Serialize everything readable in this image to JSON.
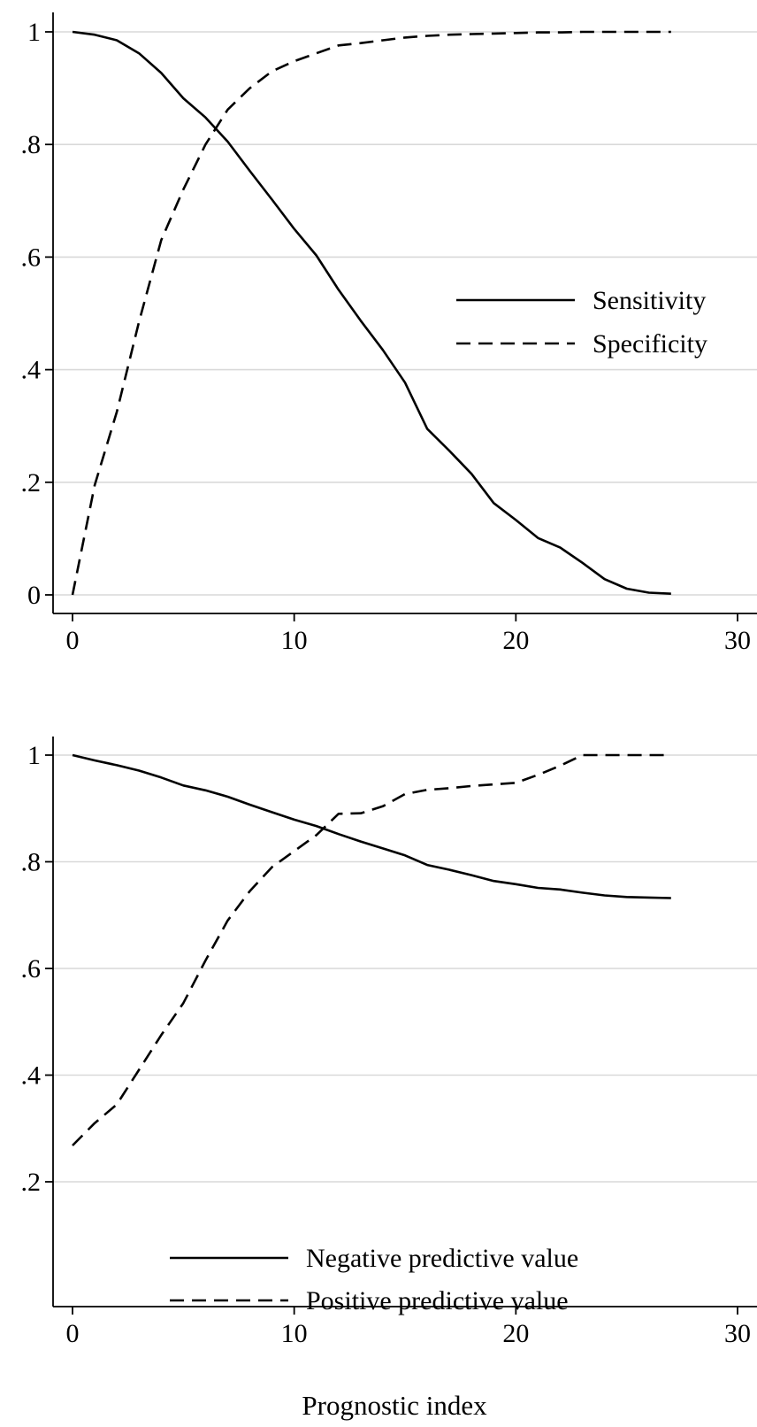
{
  "chart_data": [
    {
      "type": "line",
      "title": "",
      "xlabel": "",
      "ylabel": "",
      "xlim": [
        0,
        30
      ],
      "ylim": [
        0,
        1
      ],
      "x_ticks": [
        0,
        10,
        20,
        30
      ],
      "x_tick_labels": [
        "0",
        "10",
        "20",
        "30"
      ],
      "y_ticks": [
        0,
        0.2,
        0.4,
        0.6,
        0.8,
        1
      ],
      "y_tick_labels": [
        "0",
        ".2",
        ".4",
        ".6",
        ".8",
        "1"
      ],
      "grid": true,
      "legend_position": "right",
      "x": [
        0,
        1,
        2,
        3,
        4,
        5,
        6,
        7,
        8,
        9,
        10,
        11,
        12,
        13,
        14,
        15,
        16,
        17,
        18,
        19,
        20,
        21,
        22,
        23,
        24,
        25,
        26,
        27
      ],
      "series": [
        {
          "name": "Sensitivity",
          "style": "solid",
          "values": [
            1.0,
            0.995,
            0.985,
            0.962,
            0.927,
            0.882,
            0.848,
            0.805,
            0.753,
            0.702,
            0.65,
            0.603,
            0.542,
            0.487,
            0.435,
            0.377,
            0.295,
            0.256,
            0.215,
            0.163,
            0.133,
            0.101,
            0.084,
            0.057,
            0.028,
            0.011,
            0.004,
            0.002
          ]
        },
        {
          "name": "Specificity",
          "style": "dashed",
          "values": [
            0.0,
            0.195,
            0.325,
            0.485,
            0.63,
            0.72,
            0.8,
            0.862,
            0.9,
            0.93,
            0.948,
            0.962,
            0.976,
            0.98,
            0.985,
            0.99,
            0.993,
            0.995,
            0.996,
            0.997,
            0.998,
            0.999,
            0.999,
            1.0,
            1.0,
            1.0,
            1.0,
            1.0
          ]
        }
      ]
    },
    {
      "type": "line",
      "title": "",
      "xlabel": "Prognostic index",
      "ylabel": "",
      "xlim": [
        0,
        30
      ],
      "ylim": [
        0.0,
        1.03
      ],
      "x_ticks": [
        0,
        10,
        20,
        30
      ],
      "x_tick_labels": [
        "0",
        "10",
        "20",
        "30"
      ],
      "y_ticks": [
        0.2,
        0.4,
        0.6,
        0.8,
        1
      ],
      "y_tick_labels": [
        ".2",
        ".4",
        ".6",
        ".8",
        "1"
      ],
      "grid": true,
      "legend_position": "bottom",
      "x": [
        0,
        1,
        2,
        3,
        4,
        5,
        6,
        7,
        8,
        9,
        10,
        11,
        12,
        13,
        14,
        15,
        16,
        17,
        18,
        19,
        20,
        21,
        22,
        23,
        24,
        25,
        26,
        27
      ],
      "series": [
        {
          "name": "Negative predictive value",
          "style": "solid",
          "values": [
            1.0,
            0.99,
            0.981,
            0.971,
            0.958,
            0.943,
            0.934,
            0.922,
            0.907,
            0.893,
            0.879,
            0.867,
            0.852,
            0.838,
            0.825,
            0.812,
            0.794,
            0.785,
            0.775,
            0.764,
            0.758,
            0.751,
            0.748,
            0.742,
            0.737,
            0.734,
            0.733,
            0.732
          ]
        },
        {
          "name": "Positive predictive value",
          "style": "dashed",
          "values": [
            0.268,
            0.31,
            0.345,
            0.41,
            0.475,
            0.535,
            0.615,
            0.69,
            0.745,
            0.79,
            0.82,
            0.85,
            0.89,
            0.891,
            0.904,
            0.927,
            0.935,
            0.938,
            0.942,
            0.945,
            0.948,
            0.963,
            0.98,
            1.0,
            1.0,
            1.0,
            1.0,
            1.0
          ]
        }
      ]
    }
  ]
}
